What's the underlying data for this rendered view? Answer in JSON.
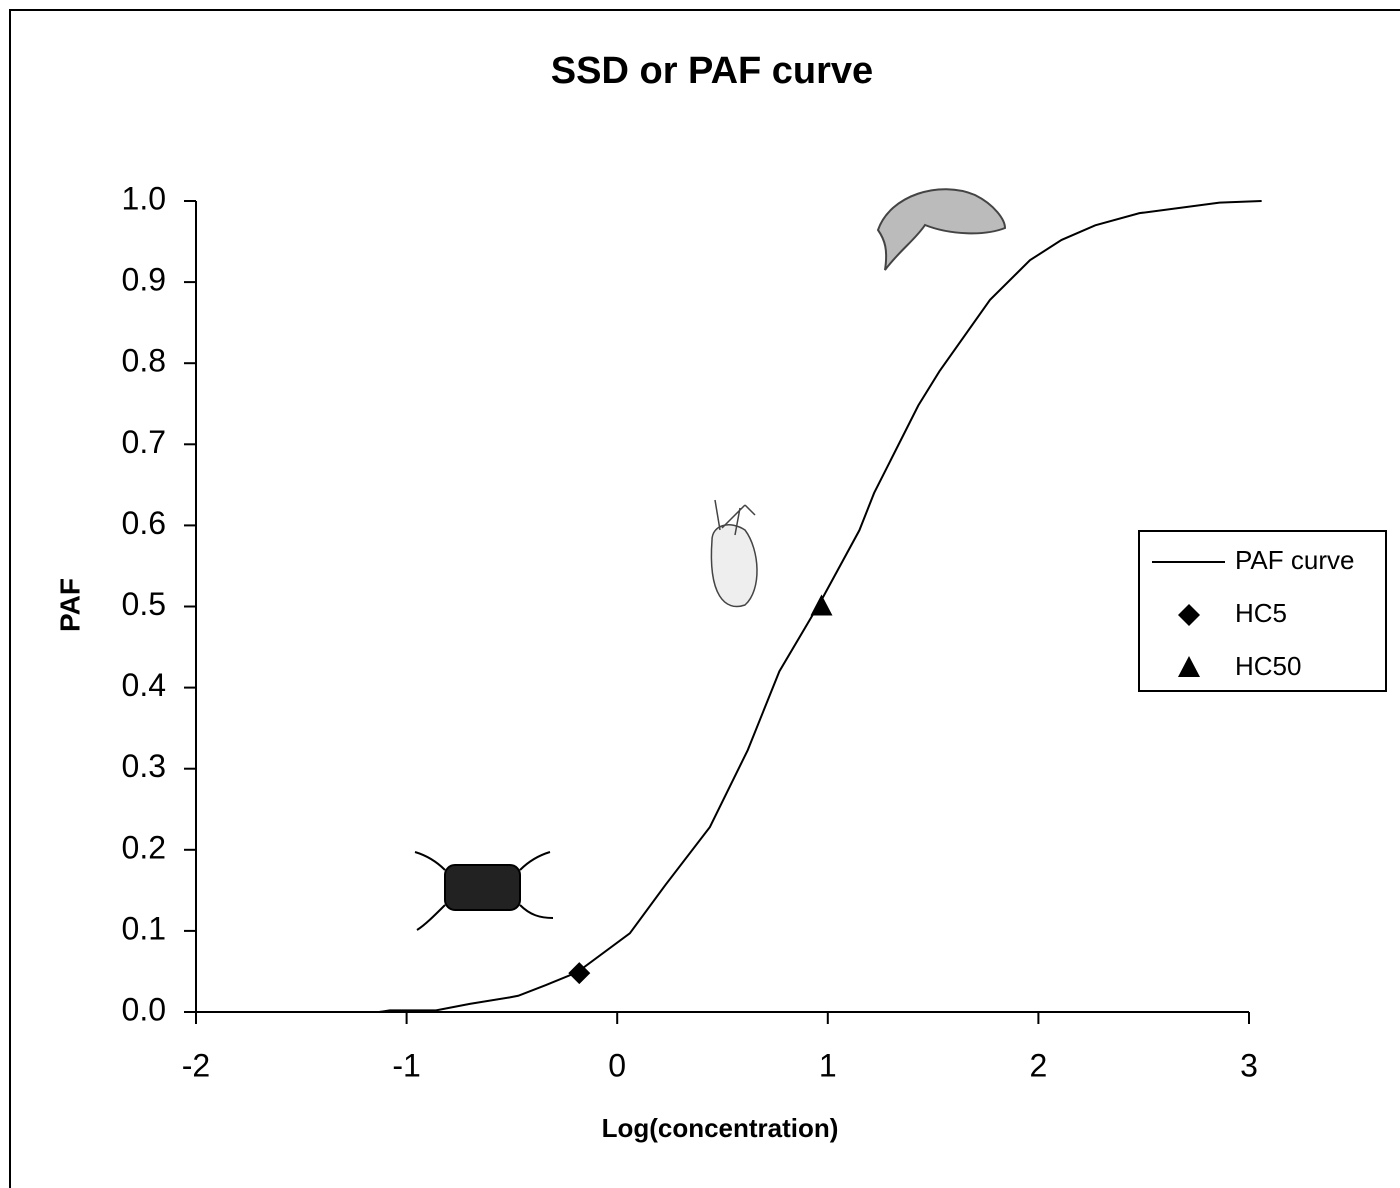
{
  "chart_data": {
    "type": "line",
    "title": "SSD or PAF curve",
    "x_label": "Log(concentration)",
    "y_label": "PAF",
    "xlim": [
      -2,
      3
    ],
    "ylim": [
      0,
      1
    ],
    "xticks": [
      -2,
      -1,
      0,
      1,
      2,
      3
    ],
    "yticks": [
      {
        "value": 0,
        "label": "0.0"
      },
      0.1,
      0.2,
      0.3,
      0.4,
      0.5,
      0.6,
      0.7,
      0.8,
      0.9,
      {
        "value": 1,
        "label": "1.0"
      }
    ],
    "grid": false,
    "legend": "right",
    "series": [
      {
        "name": "PAF curve",
        "color": "#000000",
        "marker": "none",
        "x": [
          -2,
          -1.13,
          -1.08,
          -0.86,
          -0.7,
          -0.51,
          -0.47,
          -0.34,
          -0.19,
          0.06,
          0.23,
          0.44,
          0.62,
          0.77,
          0.97,
          1.15,
          1.22,
          1.43,
          1.53,
          1.77,
          1.96,
          2.11,
          2.27,
          2.48,
          2.86,
          3.06
        ],
        "values": [
          0,
          0,
          0.002,
          0.002,
          0.01,
          0.018,
          0.02,
          0.033,
          0.049,
          0.097,
          0.157,
          0.228,
          0.323,
          0.42,
          0.508,
          0.594,
          0.64,
          0.748,
          0.79,
          0.878,
          0.927,
          0.952,
          0.97,
          0.985,
          0.998,
          1.0
        ]
      },
      {
        "name": "HC5",
        "color": "#000000",
        "marker": "diamond",
        "x": [
          -0.18
        ],
        "values": [
          0.048
        ]
      },
      {
        "name": "HC50",
        "color": "#000000",
        "marker": "triangle",
        "x": [
          0.97
        ],
        "values": [
          0.5
        ]
      }
    ]
  }
}
